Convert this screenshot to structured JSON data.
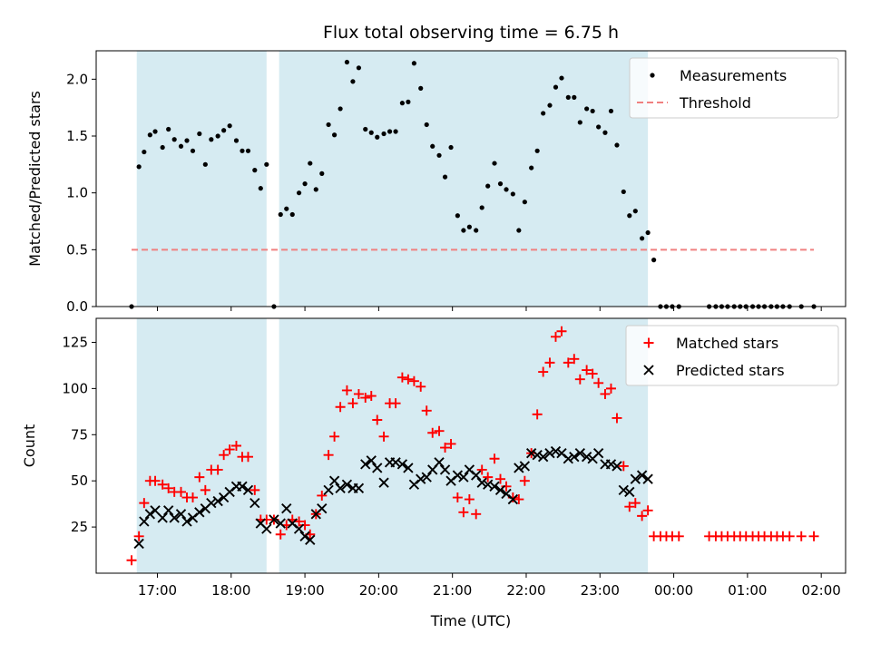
{
  "chart_data": {
    "title": "Flux total observing time = 6.75 h",
    "xlabel": "Time (UTC)",
    "x_unit": "hours since midnight (UTC); values > 24 are after midnight",
    "xlim": [
      16.17,
      26.33
    ],
    "x_ticks": [
      17,
      18,
      19,
      20,
      21,
      22,
      23,
      24,
      25,
      26
    ],
    "x_tick_labels": [
      "17:00",
      "18:00",
      "19:00",
      "20:00",
      "21:00",
      "22:00",
      "23:00",
      "00:00",
      "01:00",
      "02:00"
    ],
    "colors": {
      "measurements": "#000000",
      "threshold": "#f08080",
      "matched": "#ff0000",
      "predicted": "#000000",
      "observing_window": "#add8e6"
    },
    "observing_windows": [
      [
        16.72,
        18.48
      ],
      [
        18.65,
        23.65
      ]
    ],
    "panels": [
      {
        "type": "scatter",
        "ylabel": "Matched/Predicted stars",
        "ylim": [
          0,
          2.25
        ],
        "y_ticks": [
          0.0,
          0.5,
          1.0,
          1.5,
          2.0
        ],
        "y_tick_labels": [
          "0.0",
          "0.5",
          "1.0",
          "1.5",
          "2.0"
        ],
        "legend": {
          "position": "top-right",
          "entries": [
            "Measurements",
            "Threshold"
          ]
        },
        "series": [
          {
            "name": "Measurements",
            "marker": "dot",
            "x": [
              16.65,
              16.75,
              16.82,
              16.9,
              16.97,
              17.07,
              17.15,
              17.23,
              17.32,
              17.4,
              17.48,
              17.57,
              17.65,
              17.73,
              17.82,
              17.9,
              17.98,
              18.07,
              18.15,
              18.23,
              18.32,
              18.4,
              18.48,
              18.58,
              18.67,
              18.75,
              18.83,
              18.92,
              19.0,
              19.07,
              19.15,
              19.23,
              19.32,
              19.4,
              19.48,
              19.57,
              19.65,
              19.73,
              19.82,
              19.9,
              19.98,
              20.07,
              20.15,
              20.23,
              20.32,
              20.4,
              20.48,
              20.57,
              20.65,
              20.73,
              20.82,
              20.9,
              20.98,
              21.07,
              21.15,
              21.23,
              21.32,
              21.4,
              21.48,
              21.57,
              21.65,
              21.73,
              21.82,
              21.9,
              21.98,
              22.07,
              22.15,
              22.23,
              22.32,
              22.4,
              22.48,
              22.57,
              22.65,
              22.73,
              22.82,
              22.9,
              22.98,
              23.07,
              23.15,
              23.23,
              23.32,
              23.4,
              23.48,
              23.57,
              23.65,
              23.73,
              23.82,
              23.9,
              23.98,
              24.07,
              24.48,
              24.57,
              24.65,
              24.73,
              24.82,
              24.9,
              24.98,
              25.07,
              25.15,
              25.23,
              25.32,
              25.4,
              25.48,
              25.57,
              25.73,
              25.9
            ],
            "y": [
              0.0,
              1.23,
              1.36,
              1.51,
              1.54,
              1.4,
              1.56,
              1.47,
              1.41,
              1.46,
              1.37,
              1.52,
              1.25,
              1.47,
              1.5,
              1.55,
              1.59,
              1.46,
              1.37,
              1.37,
              1.2,
              1.04,
              1.25,
              0.0,
              0.81,
              0.86,
              0.81,
              1.0,
              1.08,
              1.26,
              1.03,
              1.17,
              1.6,
              1.51,
              1.74,
              2.15,
              1.98,
              2.1,
              1.56,
              1.53,
              1.49,
              1.52,
              1.54,
              1.54,
              1.79,
              1.8,
              2.14,
              1.92,
              1.6,
              1.41,
              1.33,
              1.14,
              1.4,
              0.8,
              0.67,
              0.7,
              0.67,
              0.87,
              1.06,
              1.26,
              1.08,
              1.03,
              0.99,
              0.67,
              0.92,
              1.22,
              1.37,
              1.7,
              1.77,
              1.93,
              2.01,
              1.84,
              1.84,
              1.62,
              1.74,
              1.72,
              1.58,
              1.53,
              1.72,
              1.42,
              1.01,
              0.8,
              0.84,
              0.6,
              0.65,
              0.41,
              0.0,
              0.0,
              0.0,
              0.0,
              0.0,
              0.0,
              0.0,
              0.0,
              0.0,
              0.0,
              0.0,
              0.0,
              0.0,
              0.0,
              0.0,
              0.0,
              0.0,
              0.0,
              0.0,
              0.0
            ]
          },
          {
            "name": "Threshold",
            "type": "line",
            "style": "dashed",
            "x": [
              16.65,
              25.9
            ],
            "y": [
              0.5,
              0.5
            ]
          }
        ]
      },
      {
        "type": "scatter",
        "ylabel": "Count",
        "ylim": [
          0,
          138
        ],
        "y_ticks": [
          25,
          50,
          75,
          100,
          125
        ],
        "y_tick_labels": [
          "25",
          "50",
          "75",
          "100",
          "125"
        ],
        "legend": {
          "position": "top-right",
          "entries": [
            "Matched stars",
            "Predicted stars"
          ]
        },
        "series": [
          {
            "name": "Matched stars",
            "marker": "plus",
            "x": [
              16.65,
              16.75,
              16.82,
              16.9,
              16.97,
              17.07,
              17.15,
              17.23,
              17.32,
              17.4,
              17.48,
              17.57,
              17.65,
              17.73,
              17.82,
              17.9,
              17.98,
              18.07,
              18.15,
              18.23,
              18.32,
              18.4,
              18.48,
              18.58,
              18.67,
              18.75,
              18.83,
              18.92,
              19.0,
              19.07,
              19.15,
              19.23,
              19.32,
              19.4,
              19.48,
              19.57,
              19.65,
              19.73,
              19.82,
              19.9,
              19.98,
              20.07,
              20.15,
              20.23,
              20.32,
              20.4,
              20.48,
              20.57,
              20.65,
              20.73,
              20.82,
              20.9,
              20.98,
              21.07,
              21.15,
              21.23,
              21.32,
              21.4,
              21.48,
              21.57,
              21.65,
              21.73,
              21.82,
              21.9,
              21.98,
              22.07,
              22.15,
              22.23,
              22.32,
              22.4,
              22.48,
              22.57,
              22.65,
              22.73,
              22.82,
              22.9,
              22.98,
              23.07,
              23.15,
              23.23,
              23.32,
              23.4,
              23.48,
              23.57,
              23.65,
              23.73,
              23.82,
              23.9,
              23.98,
              24.07,
              24.48,
              24.57,
              24.65,
              24.73,
              24.82,
              24.9,
              24.98,
              25.07,
              25.15,
              25.23,
              25.32,
              25.4,
              25.48,
              25.57,
              25.73,
              25.9
            ],
            "y": [
              7,
              20,
              38,
              50,
              50,
              48,
              46,
              44,
              44,
              41,
              41,
              52,
              45,
              56,
              56,
              64,
              67,
              69,
              63,
              63,
              45,
              29,
              29,
              29,
              21,
              26,
              29,
              28,
              26,
              21,
              32,
              42,
              64,
              74,
              90,
              99,
              92,
              97,
              95,
              96,
              83,
              74,
              92,
              92,
              106,
              105,
              104,
              101,
              88,
              76,
              77,
              68,
              70,
              41,
              33,
              40,
              32,
              56,
              52,
              62,
              51,
              47,
              41,
              40,
              50,
              65,
              86,
              109,
              114,
              128,
              131,
              114,
              116,
              105,
              110,
              108,
              103,
              97,
              100,
              84,
              58,
              36,
              38,
              31,
              34,
              20,
              20,
              20,
              20,
              20,
              20,
              20,
              20,
              20,
              20,
              20,
              20,
              20,
              20,
              20,
              20,
              20,
              20,
              20,
              20,
              20
            ]
          },
          {
            "name": "Predicted stars",
            "marker": "x",
            "x": [
              16.75,
              16.82,
              16.9,
              16.97,
              17.07,
              17.15,
              17.23,
              17.32,
              17.4,
              17.48,
              17.57,
              17.65,
              17.73,
              17.82,
              17.9,
              17.98,
              18.07,
              18.15,
              18.23,
              18.32,
              18.4,
              18.48,
              18.58,
              18.67,
              18.75,
              18.83,
              18.92,
              19.0,
              19.07,
              19.15,
              19.23,
              19.32,
              19.4,
              19.48,
              19.57,
              19.65,
              19.73,
              19.82,
              19.9,
              19.98,
              20.07,
              20.15,
              20.23,
              20.32,
              20.4,
              20.48,
              20.57,
              20.65,
              20.73,
              20.82,
              20.9,
              20.98,
              21.07,
              21.15,
              21.23,
              21.32,
              21.4,
              21.48,
              21.57,
              21.65,
              21.73,
              21.82,
              21.9,
              21.98,
              22.07,
              22.15,
              22.23,
              22.32,
              22.4,
              22.48,
              22.57,
              22.65,
              22.73,
              22.82,
              22.9,
              22.98,
              23.07,
              23.15,
              23.23,
              23.32,
              23.4,
              23.48,
              23.57,
              23.65
            ],
            "y": [
              16,
              28,
              32,
              34,
              30,
              34,
              30,
              32,
              28,
              30,
              33,
              35,
              38,
              39,
              41,
              44,
              47,
              47,
              45,
              38,
              27,
              24,
              29,
              27,
              35,
              27,
              24,
              20,
              18,
              32,
              35,
              45,
              50,
              46,
              48,
              46,
              46,
              59,
              61,
              57,
              49,
              60,
              60,
              59,
              57,
              48,
              51,
              52,
              56,
              60,
              56,
              50,
              53,
              52,
              56,
              53,
              49,
              48,
              47,
              45,
              43,
              40,
              57,
              58,
              65,
              64,
              63,
              65,
              66,
              65,
              62,
              63,
              65,
              63,
              62,
              65,
              59,
              59,
              58,
              45,
              44,
              51,
              53,
              51
            ]
          }
        ]
      }
    ]
  }
}
